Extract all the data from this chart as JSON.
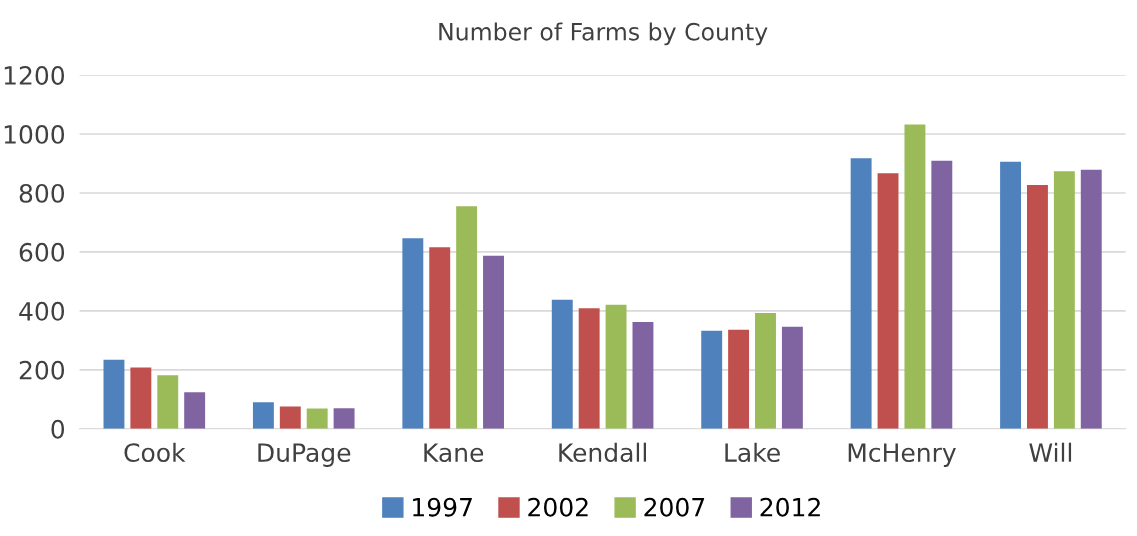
{
  "chart_data": {
    "type": "bar",
    "title": "Number of Farms by County",
    "categories": [
      "Cook",
      "DuPage",
      "Kane",
      "Kendall",
      "Lake",
      "McHenry",
      "Will"
    ],
    "series": [
      {
        "name": "1997",
        "color": "#4f81bd",
        "values": [
          234,
          90,
          646,
          438,
          333,
          918,
          906
        ]
      },
      {
        "name": "2002",
        "color": "#c0504d",
        "values": [
          208,
          76,
          616,
          409,
          336,
          867,
          827
        ]
      },
      {
        "name": "2007",
        "color": "#9bbb59",
        "values": [
          182,
          69,
          755,
          421,
          393,
          1032,
          874
        ]
      },
      {
        "name": "2012",
        "color": "#8064a2",
        "values": [
          124,
          70,
          587,
          362,
          346,
          909,
          879
        ]
      }
    ],
    "ylim": [
      0,
      1200
    ],
    "yticks": [
      0,
      200,
      400,
      600,
      800,
      1000,
      1200
    ],
    "grid": "y",
    "legend": "bottom"
  }
}
